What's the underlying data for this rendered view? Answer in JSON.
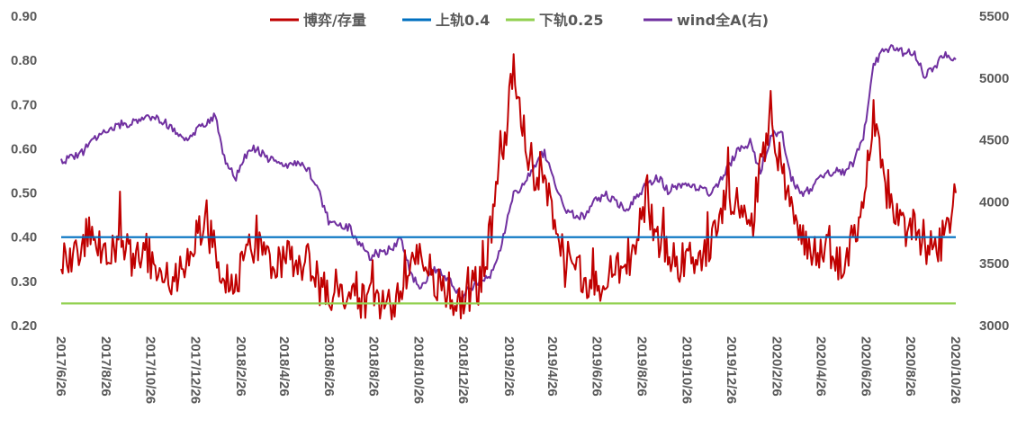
{
  "chart_data": {
    "type": "line",
    "title": "",
    "xlabel": "",
    "ylabel": "",
    "y_left": {
      "min": 0.2,
      "max": 0.9,
      "ticks": [
        "0.20",
        "0.30",
        "0.40",
        "0.50",
        "0.60",
        "0.70",
        "0.80",
        "0.90"
      ]
    },
    "y_right": {
      "min": 3000,
      "max": 5500,
      "ticks": [
        "3000",
        "3500",
        "4000",
        "4500",
        "5000",
        "5500"
      ]
    },
    "x_range": [
      "2017/6/26",
      "2020/10/26"
    ],
    "x_ticks": [
      "2017/6/26",
      "2017/8/26",
      "2017/10/26",
      "2017/12/26",
      "2018/2/26",
      "2018/4/26",
      "2018/6/26",
      "2018/8/26",
      "2018/10/26",
      "2018/12/26",
      "2019/2/26",
      "2019/4/26",
      "2019/6/26",
      "2019/8/26",
      "2019/10/26",
      "2019/12/26",
      "2020/2/26",
      "2020/4/26",
      "2020/6/26",
      "2020/8/26",
      "2020/10/26"
    ],
    "legend_position": "top",
    "grid": false,
    "series": [
      {
        "name": "博弈/存量",
        "axis": "left",
        "color": "#C00000",
        "points": [
          [
            "2017/6/26",
            0.31
          ],
          [
            "2017/7/10",
            0.34
          ],
          [
            "2017/7/24",
            0.37
          ],
          [
            "2017/8/7",
            0.42
          ],
          [
            "2017/8/21",
            0.38
          ],
          [
            "2017/9/4",
            0.36
          ],
          [
            "2017/9/18",
            0.4
          ],
          [
            "2017/10/2",
            0.35
          ],
          [
            "2017/10/16",
            0.38
          ],
          [
            "2017/10/30",
            0.34
          ],
          [
            "2017/11/13",
            0.32
          ],
          [
            "2017/11/27",
            0.3
          ],
          [
            "2017/12/11",
            0.33
          ],
          [
            "2017/12/25",
            0.4
          ],
          [
            "2018/1/8",
            0.42
          ],
          [
            "2018/1/22",
            0.38
          ],
          [
            "2018/2/5",
            0.24
          ],
          [
            "2018/2/19",
            0.3
          ],
          [
            "2018/3/5",
            0.36
          ],
          [
            "2018/3/19",
            0.38
          ],
          [
            "2018/4/2",
            0.34
          ],
          [
            "2018/4/16",
            0.33
          ],
          [
            "2018/4/30",
            0.36
          ],
          [
            "2018/5/14",
            0.31
          ],
          [
            "2018/5/28",
            0.34
          ],
          [
            "2018/6/11",
            0.3
          ],
          [
            "2018/6/25",
            0.27
          ],
          [
            "2018/7/9",
            0.3
          ],
          [
            "2018/7/23",
            0.26
          ],
          [
            "2018/8/6",
            0.25
          ],
          [
            "2018/8/20",
            0.27
          ],
          [
            "2018/9/3",
            0.24
          ],
          [
            "2018/9/17",
            0.26
          ],
          [
            "2018/10/1",
            0.25
          ],
          [
            "2018/10/15",
            0.33
          ],
          [
            "2018/10/29",
            0.36
          ],
          [
            "2018/11/12",
            0.32
          ],
          [
            "2018/11/26",
            0.28
          ],
          [
            "2018/12/10",
            0.26
          ],
          [
            "2018/12/24",
            0.25
          ],
          [
            "2019/1/7",
            0.28
          ],
          [
            "2019/1/21",
            0.3
          ],
          [
            "2019/2/4",
            0.45
          ],
          [
            "2019/2/18",
            0.6
          ],
          [
            "2019/3/4",
            0.78
          ],
          [
            "2019/3/18",
            0.62
          ],
          [
            "2019/4/1",
            0.55
          ],
          [
            "2019/4/15",
            0.52
          ],
          [
            "2019/4/29",
            0.42
          ],
          [
            "2019/5/13",
            0.36
          ],
          [
            "2019/5/27",
            0.32
          ],
          [
            "2019/6/10",
            0.3
          ],
          [
            "2019/6/24",
            0.28
          ],
          [
            "2019/7/8",
            0.3
          ],
          [
            "2019/7/22",
            0.34
          ],
          [
            "2019/8/5",
            0.3
          ],
          [
            "2019/8/19",
            0.42
          ],
          [
            "2019/9/2",
            0.48
          ],
          [
            "2019/9/16",
            0.4
          ],
          [
            "2019/9/30",
            0.35
          ],
          [
            "2019/10/14",
            0.34
          ],
          [
            "2019/10/28",
            0.36
          ],
          [
            "2019/11/11",
            0.33
          ],
          [
            "2019/11/25",
            0.38
          ],
          [
            "2019/12/9",
            0.46
          ],
          [
            "2019/12/23",
            0.5
          ],
          [
            "2020/1/6",
            0.45
          ],
          [
            "2020/1/20",
            0.4
          ],
          [
            "2020/2/3",
            0.55
          ],
          [
            "2020/2/17",
            0.7
          ],
          [
            "2020/3/2",
            0.55
          ],
          [
            "2020/3/16",
            0.45
          ],
          [
            "2020/3/30",
            0.4
          ],
          [
            "2020/4/13",
            0.36
          ],
          [
            "2020/4/27",
            0.38
          ],
          [
            "2020/5/11",
            0.35
          ],
          [
            "2020/5/25",
            0.34
          ],
          [
            "2020/6/8",
            0.4
          ],
          [
            "2020/6/22",
            0.48
          ],
          [
            "2020/7/6",
            0.66
          ],
          [
            "2020/7/20",
            0.52
          ],
          [
            "2020/8/3",
            0.46
          ],
          [
            "2020/8/17",
            0.42
          ],
          [
            "2020/8/31",
            0.44
          ],
          [
            "2020/9/14",
            0.36
          ],
          [
            "2020/9/28",
            0.38
          ],
          [
            "2020/10/12",
            0.4
          ],
          [
            "2020/10/26",
            0.5
          ]
        ]
      },
      {
        "name": "上轨0.4",
        "axis": "left",
        "color": "#0070C0",
        "points": [
          [
            "2017/6/26",
            0.4
          ],
          [
            "2020/10/26",
            0.4
          ]
        ]
      },
      {
        "name": "下轨0.25",
        "axis": "left",
        "color": "#92D050",
        "points": [
          [
            "2017/6/26",
            0.25
          ],
          [
            "2020/10/26",
            0.25
          ]
        ]
      },
      {
        "name": "wind全A(右)",
        "axis": "right",
        "color": "#7030A0",
        "points": [
          [
            "2017/6/26",
            4330
          ],
          [
            "2017/7/10",
            4360
          ],
          [
            "2017/7/24",
            4400
          ],
          [
            "2017/8/7",
            4480
          ],
          [
            "2017/8/21",
            4550
          ],
          [
            "2017/9/4",
            4610
          ],
          [
            "2017/9/18",
            4630
          ],
          [
            "2017/10/2",
            4640
          ],
          [
            "2017/10/16",
            4660
          ],
          [
            "2017/10/30",
            4680
          ],
          [
            "2017/11/13",
            4650
          ],
          [
            "2017/11/27",
            4560
          ],
          [
            "2017/12/11",
            4520
          ],
          [
            "2017/12/25",
            4560
          ],
          [
            "2018/1/8",
            4640
          ],
          [
            "2018/1/22",
            4690
          ],
          [
            "2018/2/5",
            4300
          ],
          [
            "2018/2/19",
            4200
          ],
          [
            "2018/3/5",
            4380
          ],
          [
            "2018/3/19",
            4440
          ],
          [
            "2018/4/2",
            4350
          ],
          [
            "2018/4/16",
            4310
          ],
          [
            "2018/4/30",
            4300
          ],
          [
            "2018/5/14",
            4330
          ],
          [
            "2018/5/28",
            4270
          ],
          [
            "2018/6/11",
            4100
          ],
          [
            "2018/6/25",
            3850
          ],
          [
            "2018/7/9",
            3800
          ],
          [
            "2018/7/23",
            3800
          ],
          [
            "2018/8/6",
            3660
          ],
          [
            "2018/8/20",
            3560
          ],
          [
            "2018/9/3",
            3590
          ],
          [
            "2018/9/17",
            3620
          ],
          [
            "2018/10/1",
            3700
          ],
          [
            "2018/10/15",
            3420
          ],
          [
            "2018/10/29",
            3300
          ],
          [
            "2018/11/12",
            3450
          ],
          [
            "2018/11/26",
            3420
          ],
          [
            "2018/12/10",
            3350
          ],
          [
            "2018/12/24",
            3220
          ],
          [
            "2019/1/7",
            3320
          ],
          [
            "2019/1/21",
            3380
          ],
          [
            "2019/2/4",
            3420
          ],
          [
            "2019/2/18",
            3720
          ],
          [
            "2019/3/4",
            4050
          ],
          [
            "2019/3/18",
            4150
          ],
          [
            "2019/4/1",
            4300
          ],
          [
            "2019/4/15",
            4400
          ],
          [
            "2019/4/29",
            4150
          ],
          [
            "2019/5/13",
            3950
          ],
          [
            "2019/5/27",
            3880
          ],
          [
            "2019/6/10",
            3900
          ],
          [
            "2019/6/24",
            4020
          ],
          [
            "2019/7/8",
            4050
          ],
          [
            "2019/7/22",
            4000
          ],
          [
            "2019/8/5",
            3920
          ],
          [
            "2019/8/19",
            4050
          ],
          [
            "2019/9/2",
            4150
          ],
          [
            "2019/9/16",
            4200
          ],
          [
            "2019/9/30",
            4090
          ],
          [
            "2019/10/14",
            4130
          ],
          [
            "2019/10/28",
            4150
          ],
          [
            "2019/11/11",
            4100
          ],
          [
            "2019/11/25",
            4070
          ],
          [
            "2019/12/9",
            4150
          ],
          [
            "2019/12/23",
            4300
          ],
          [
            "2020/1/6",
            4440
          ],
          [
            "2020/1/20",
            4480
          ],
          [
            "2020/2/3",
            4250
          ],
          [
            "2020/2/17",
            4520
          ],
          [
            "2020/3/2",
            4590
          ],
          [
            "2020/3/16",
            4200
          ],
          [
            "2020/3/30",
            4050
          ],
          [
            "2020/4/13",
            4110
          ],
          [
            "2020/4/27",
            4200
          ],
          [
            "2020/5/11",
            4250
          ],
          [
            "2020/5/25",
            4230
          ],
          [
            "2020/6/8",
            4310
          ],
          [
            "2020/6/22",
            4500
          ],
          [
            "2020/7/6",
            5100
          ],
          [
            "2020/7/20",
            5230
          ],
          [
            "2020/8/3",
            5250
          ],
          [
            "2020/8/17",
            5200
          ],
          [
            "2020/8/31",
            5200
          ],
          [
            "2020/9/14",
            5010
          ],
          [
            "2020/9/28",
            5100
          ],
          [
            "2020/10/12",
            5200
          ],
          [
            "2020/10/26",
            5150
          ]
        ]
      }
    ]
  }
}
